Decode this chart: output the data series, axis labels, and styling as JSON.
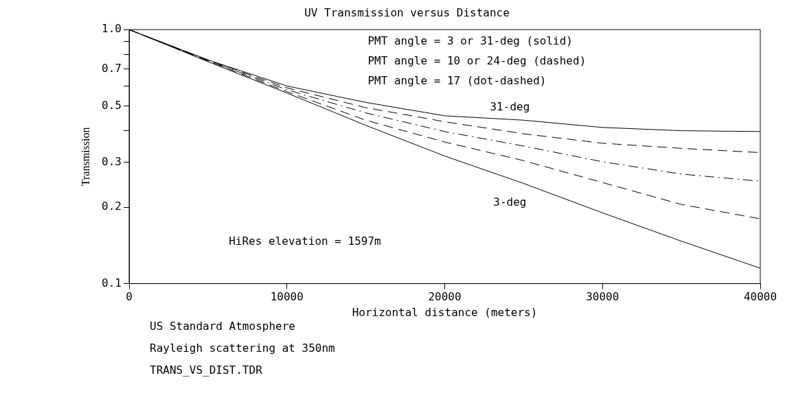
{
  "chart_data": {
    "type": "line",
    "title": "UV Transmission versus Distance",
    "xlabel": "Horizontal distance (meters)",
    "ylabel": "Transmission",
    "x": [
      0,
      5000,
      10000,
      15000,
      20000,
      25000,
      30000,
      35000,
      40000
    ],
    "series": [
      {
        "name": "31-deg",
        "color": "#000000",
        "line_style": "solid",
        "values": [
          1.0,
          0.76,
          0.6,
          0.517,
          0.458,
          0.44,
          0.412,
          0.4,
          0.397
        ]
      },
      {
        "color": "#000000",
        "line_style": "dashed",
        "values": [
          1.0,
          0.758,
          0.59,
          0.493,
          0.434,
          0.389,
          0.357,
          0.341,
          0.328
        ]
      },
      {
        "color": "#000000",
        "line_style": "dashdot",
        "values": [
          1.0,
          0.756,
          0.58,
          0.47,
          0.397,
          0.348,
          0.302,
          0.27,
          0.253
        ]
      },
      {
        "color": "#000000",
        "line_style": "dashed",
        "values": [
          1.0,
          0.753,
          0.57,
          0.44,
          0.361,
          0.305,
          0.25,
          0.205,
          0.18
        ]
      },
      {
        "name": "3-deg",
        "color": "#000000",
        "line_style": "solid",
        "values": [
          1.0,
          0.748,
          0.563,
          0.42,
          0.318,
          0.248,
          0.19,
          0.147,
          0.115
        ]
      }
    ],
    "log": "y",
    "grid": false,
    "legend": false,
    "xlim": [
      0,
      40000
    ],
    "xticks": [
      0,
      10000,
      20000,
      30000,
      40000
    ],
    "ylim": [
      0.1,
      1.0
    ],
    "yticks": [
      {
        "value": 0.1,
        "label": "0.1"
      },
      {
        "value": 0.2,
        "label": "0.2"
      },
      {
        "value": 0.3,
        "label": "0.3"
      },
      {
        "value": 0.4,
        "label": null
      },
      {
        "value": 0.5,
        "label": "0.5"
      },
      {
        "value": 0.6,
        "label": null
      },
      {
        "value": 0.7,
        "label": "0.7"
      },
      {
        "value": 0.8,
        "label": null
      },
      {
        "value": 0.9,
        "label": null
      },
      {
        "value": 1.0,
        "label": "1.0"
      }
    ],
    "annotations": [
      "PMT angle = 3 or 31-deg (solid)",
      "PMT angle = 10 or 24-deg (dashed)",
      "PMT angle = 17 (dot-dashed)",
      "HiRes elevation = 1597m",
      "US Standard Atmosphere",
      "Rayleigh scattering at 350nm",
      "TRANS_VS_DIST.TDR"
    ]
  }
}
